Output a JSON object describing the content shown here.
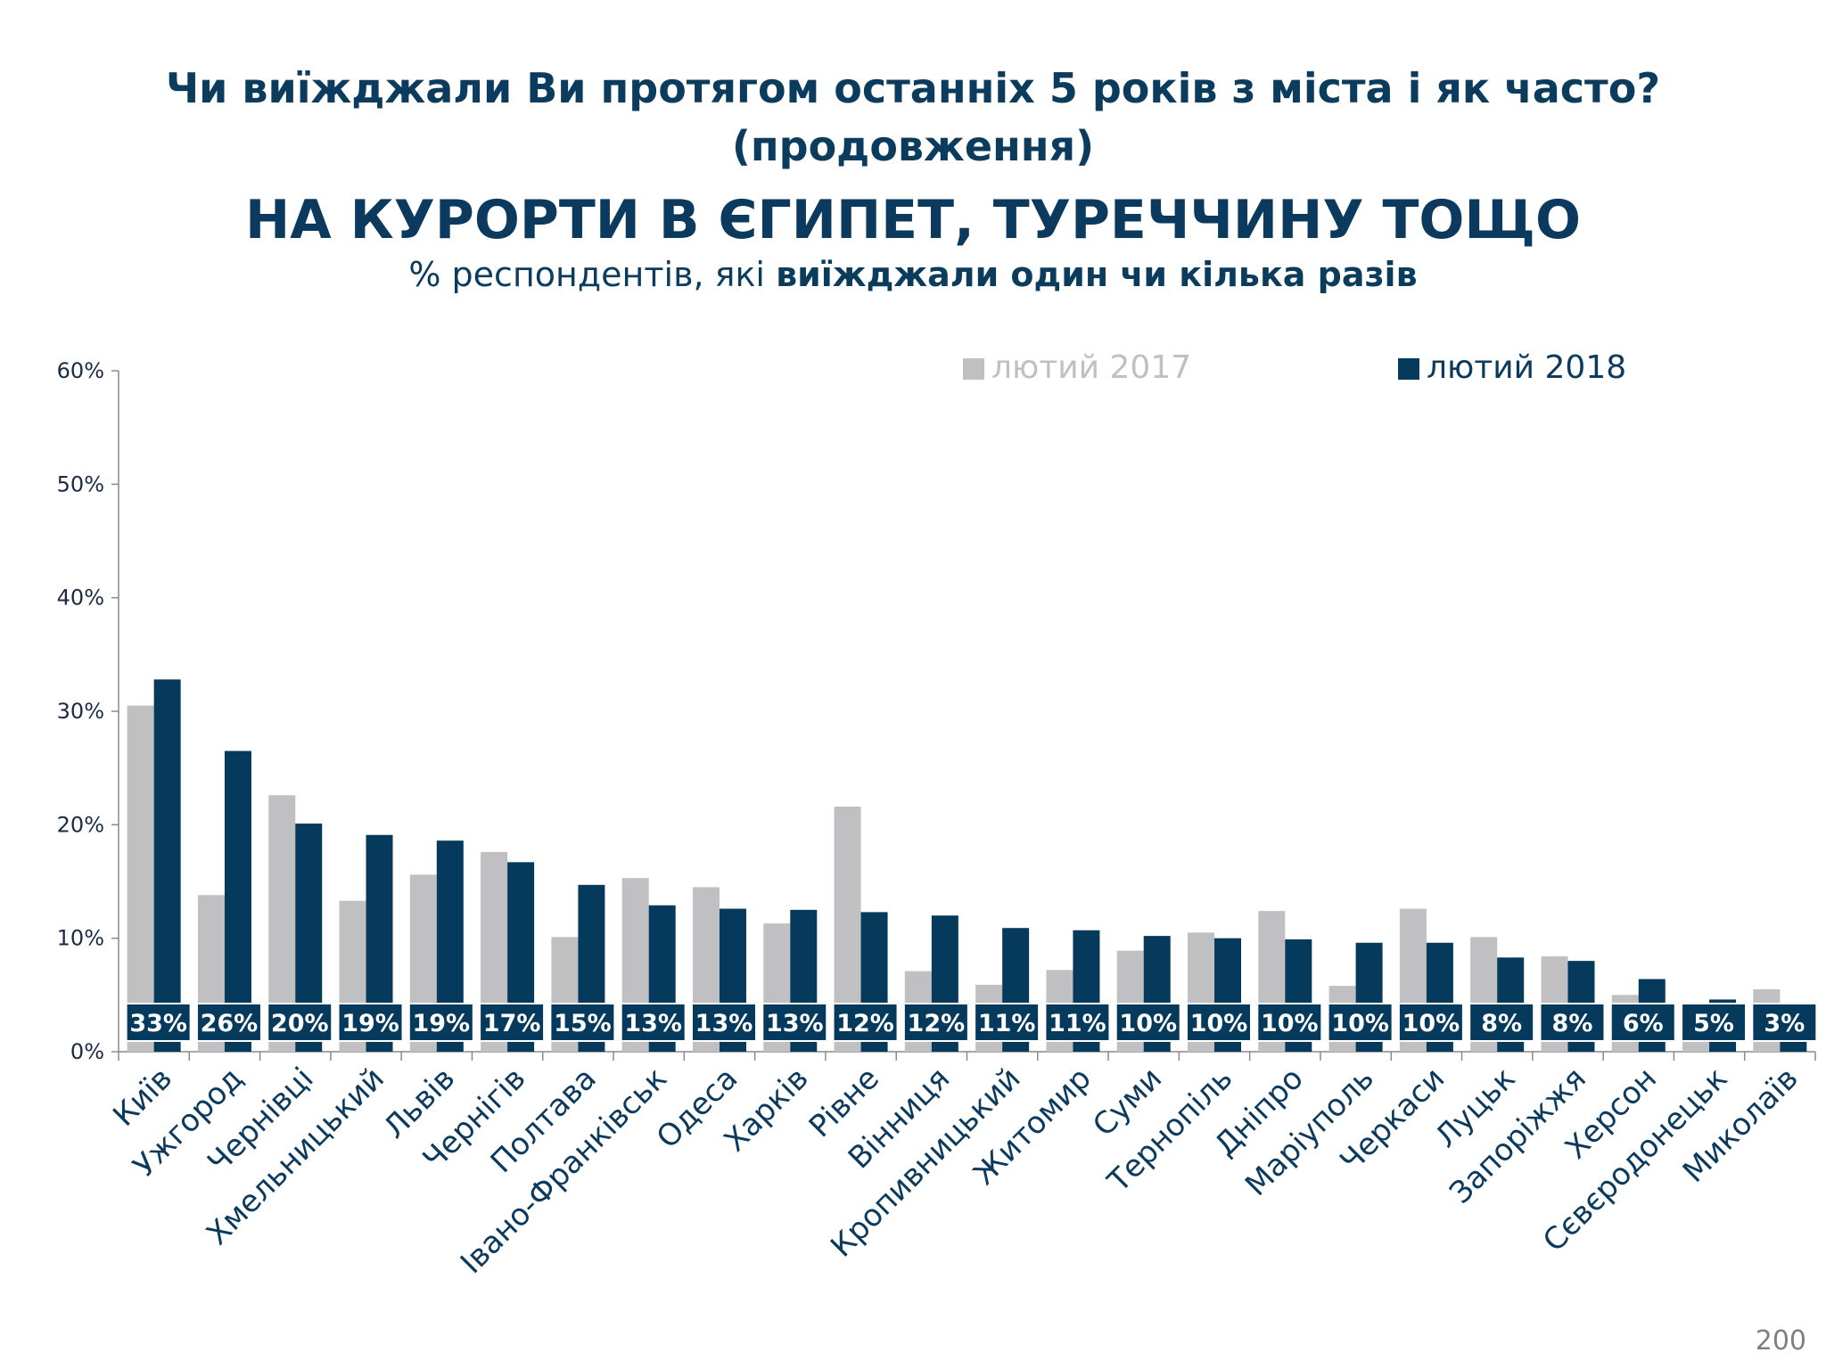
{
  "header": {
    "question": "Чи виїжджали Ви протягом останніх 5 років з міста і як часто?",
    "continuation": "(продовження)",
    "headline": "НА КУРОРТИ В ЄГИПЕТ, ТУРЕЧЧИНУ ТОЩО",
    "subtitle_regular": "% респондентів, які ",
    "subtitle_bold": "виїжджали один чи кілька разів"
  },
  "page_number": "200",
  "colors": {
    "title": "#0b3c5d",
    "series_2017": "#c0c0c2",
    "series_2018": "#063a5c"
  },
  "chart_data": {
    "type": "bar",
    "categories": [
      "Київ",
      "Ужгород",
      "Чернівці",
      "Хмельницький",
      "Львів",
      "Чернігів",
      "Полтава",
      "Івано-Франківськ",
      "Одеса",
      "Харків",
      "Рівне",
      "Вінниця",
      "Кропивницький",
      "Житомир",
      "Суми",
      "Тернопіль",
      "Дніпро",
      "Маріуполь",
      "Черкаси",
      "Луцьк",
      "Запоріжжя",
      "Херсон",
      "Сєвєродонецьк",
      "Миколаїв"
    ],
    "series": [
      {
        "name": "лютий 2017",
        "color": "#c0c0c2",
        "values": [
          30.5,
          13.8,
          22.6,
          13.3,
          15.6,
          17.6,
          10.1,
          15.3,
          14.5,
          11.3,
          21.6,
          7.1,
          5.9,
          7.2,
          8.9,
          10.5,
          12.4,
          5.8,
          12.6,
          10.1,
          8.4,
          5.0,
          2.4,
          5.5
        ]
      },
      {
        "name": "лютий 2018",
        "color": "#063a5c",
        "values": [
          32.8,
          26.5,
          20.1,
          19.1,
          18.6,
          16.7,
          14.7,
          12.9,
          12.6,
          12.5,
          12.3,
          12.0,
          10.9,
          10.7,
          10.2,
          10.0,
          9.9,
          9.6,
          9.6,
          8.3,
          8.0,
          6.4,
          4.6,
          3.2
        ]
      }
    ],
    "data_labels": [
      "33%",
      "26%",
      "20%",
      "19%",
      "19%",
      "17%",
      "15%",
      "13%",
      "13%",
      "13%",
      "12%",
      "12%",
      "11%",
      "11%",
      "10%",
      "10%",
      "10%",
      "10%",
      "10%",
      "8%",
      "8%",
      "6%",
      "5%",
      "3%"
    ],
    "yticks": [
      "0%",
      "10%",
      "20%",
      "30%",
      "40%",
      "50%",
      "60%"
    ],
    "ylim": [
      0,
      60
    ],
    "legend_position": "top",
    "grid": false
  }
}
